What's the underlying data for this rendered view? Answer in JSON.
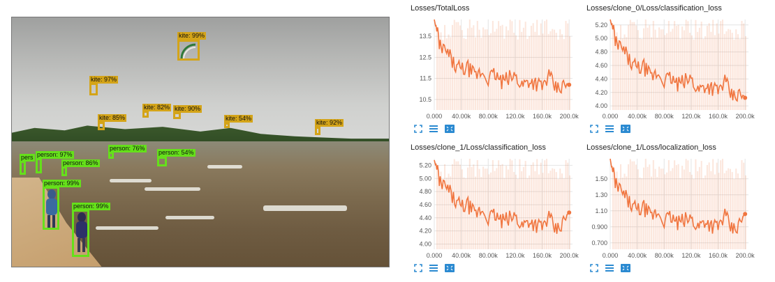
{
  "photo": {
    "detections": [
      {
        "label": "kite: 99%",
        "cls": "kite"
      },
      {
        "label": "kite: 97%",
        "cls": "kite"
      },
      {
        "label": "kite: 85%",
        "cls": "kite"
      },
      {
        "label": "kite: 82%",
        "cls": "kite"
      },
      {
        "label": "kite: 90%",
        "cls": "kite"
      },
      {
        "label": "kite: 54%",
        "cls": "kite"
      },
      {
        "label": "kite: 92%",
        "cls": "kite"
      },
      {
        "label": "person: 76%",
        "cls": "person"
      },
      {
        "label": "person: 54%",
        "cls": "person"
      },
      {
        "label": "person: 97%",
        "cls": "person"
      },
      {
        "label": "pers",
        "cls": "person"
      },
      {
        "label": "person: 86%",
        "cls": "person"
      },
      {
        "label": "person: 99%",
        "cls": "person"
      },
      {
        "label": "person: 99%",
        "cls": "person"
      }
    ]
  },
  "accent_color": "#f0753f",
  "panel_icons": [
    "expand-icon",
    "data-table-icon",
    "fit-domain-icon"
  ],
  "chart_data": [
    {
      "type": "line",
      "title": "Losses/TotalLoss",
      "x_ticks": [
        "0.000",
        "40.00k",
        "80.00k",
        "120.0k",
        "160.0k",
        "200.0k"
      ],
      "y_ticks": [
        "10.5",
        "11.5",
        "12.5",
        "13.5"
      ],
      "ylim": [
        10.0,
        14.3
      ],
      "xlim": [
        0,
        205000
      ],
      "series": [
        {
          "x": [
            0,
            2500,
            10000,
            20000,
            30000,
            40000,
            50000,
            60000,
            70000,
            80000,
            90000,
            100000,
            110000,
            120000,
            130000,
            140000,
            150000,
            160000,
            170000,
            180000,
            190000,
            200000
          ],
          "y": [
            14.3,
            13.9,
            12.9,
            12.7,
            12.1,
            11.9,
            12.0,
            11.6,
            11.8,
            11.5,
            11.7,
            11.3,
            11.5,
            11.6,
            11.2,
            11.4,
            11.3,
            11.1,
            11.6,
            11.0,
            11.1,
            11.2
          ]
        }
      ]
    },
    {
      "type": "line",
      "title": "Losses/clone_0/Loss/classification_loss",
      "x_ticks": [
        "0.000",
        "40.00k",
        "80.00k",
        "120.0k",
        "160.0k",
        "200.0k"
      ],
      "y_ticks": [
        "4.00",
        "4.20",
        "4.40",
        "4.60",
        "4.80",
        "5.00",
        "5.20"
      ],
      "ylim": [
        3.94,
        5.28
      ],
      "xlim": [
        0,
        205000
      ],
      "series": [
        {
          "x": [
            0,
            2500,
            10000,
            20000,
            30000,
            40000,
            50000,
            60000,
            70000,
            80000,
            90000,
            100000,
            110000,
            120000,
            130000,
            140000,
            150000,
            160000,
            170000,
            180000,
            190000,
            200000
          ],
          "y": [
            5.28,
            5.18,
            4.9,
            4.82,
            4.64,
            4.55,
            4.58,
            4.42,
            4.48,
            4.38,
            4.41,
            4.31,
            4.36,
            4.4,
            4.24,
            4.3,
            4.28,
            4.22,
            4.36,
            4.14,
            4.16,
            4.12
          ]
        }
      ]
    },
    {
      "type": "line",
      "title": "Losses/clone_1/Loss/classification_loss",
      "x_ticks": [
        "0.000",
        "40.00k",
        "80.00k",
        "120.0k",
        "160.0k",
        "200.0k"
      ],
      "y_ticks": [
        "4.00",
        "4.20",
        "4.40",
        "4.60",
        "4.80",
        "5.00",
        "5.20"
      ],
      "ylim": [
        3.92,
        5.3
      ],
      "xlim": [
        0,
        205000
      ],
      "series": [
        {
          "x": [
            0,
            2500,
            10000,
            20000,
            30000,
            40000,
            50000,
            60000,
            70000,
            80000,
            90000,
            100000,
            110000,
            120000,
            130000,
            140000,
            150000,
            160000,
            170000,
            180000,
            190000,
            200000
          ],
          "y": [
            5.28,
            5.18,
            4.9,
            4.84,
            4.66,
            4.56,
            4.6,
            4.44,
            4.52,
            4.4,
            4.44,
            4.34,
            4.38,
            4.42,
            4.28,
            4.36,
            4.3,
            4.26,
            4.4,
            4.2,
            4.3,
            4.48
          ]
        }
      ]
    },
    {
      "type": "line",
      "title": "Losses/clone_1/Loss/localization_loss",
      "x_ticks": [
        "0.000",
        "40.00k",
        "80.00k",
        "120.0k",
        "160.0k",
        "200.0k"
      ],
      "y_ticks": [
        "0.700",
        "0.900",
        "1.10",
        "1.30",
        "1.50"
      ],
      "ylim": [
        0.62,
        1.75
      ],
      "xlim": [
        0,
        205000
      ],
      "series": [
        {
          "x": [
            0,
            2500,
            10000,
            20000,
            30000,
            40000,
            50000,
            60000,
            70000,
            80000,
            90000,
            100000,
            110000,
            120000,
            130000,
            140000,
            150000,
            160000,
            170000,
            180000,
            190000,
            200000
          ],
          "y": [
            1.75,
            1.62,
            1.4,
            1.3,
            1.18,
            1.1,
            1.14,
            1.02,
            1.08,
            0.98,
            1.02,
            0.94,
            0.98,
            1.0,
            0.9,
            0.98,
            0.92,
            0.9,
            1.04,
            0.86,
            0.9,
            1.06
          ]
        }
      ]
    }
  ]
}
